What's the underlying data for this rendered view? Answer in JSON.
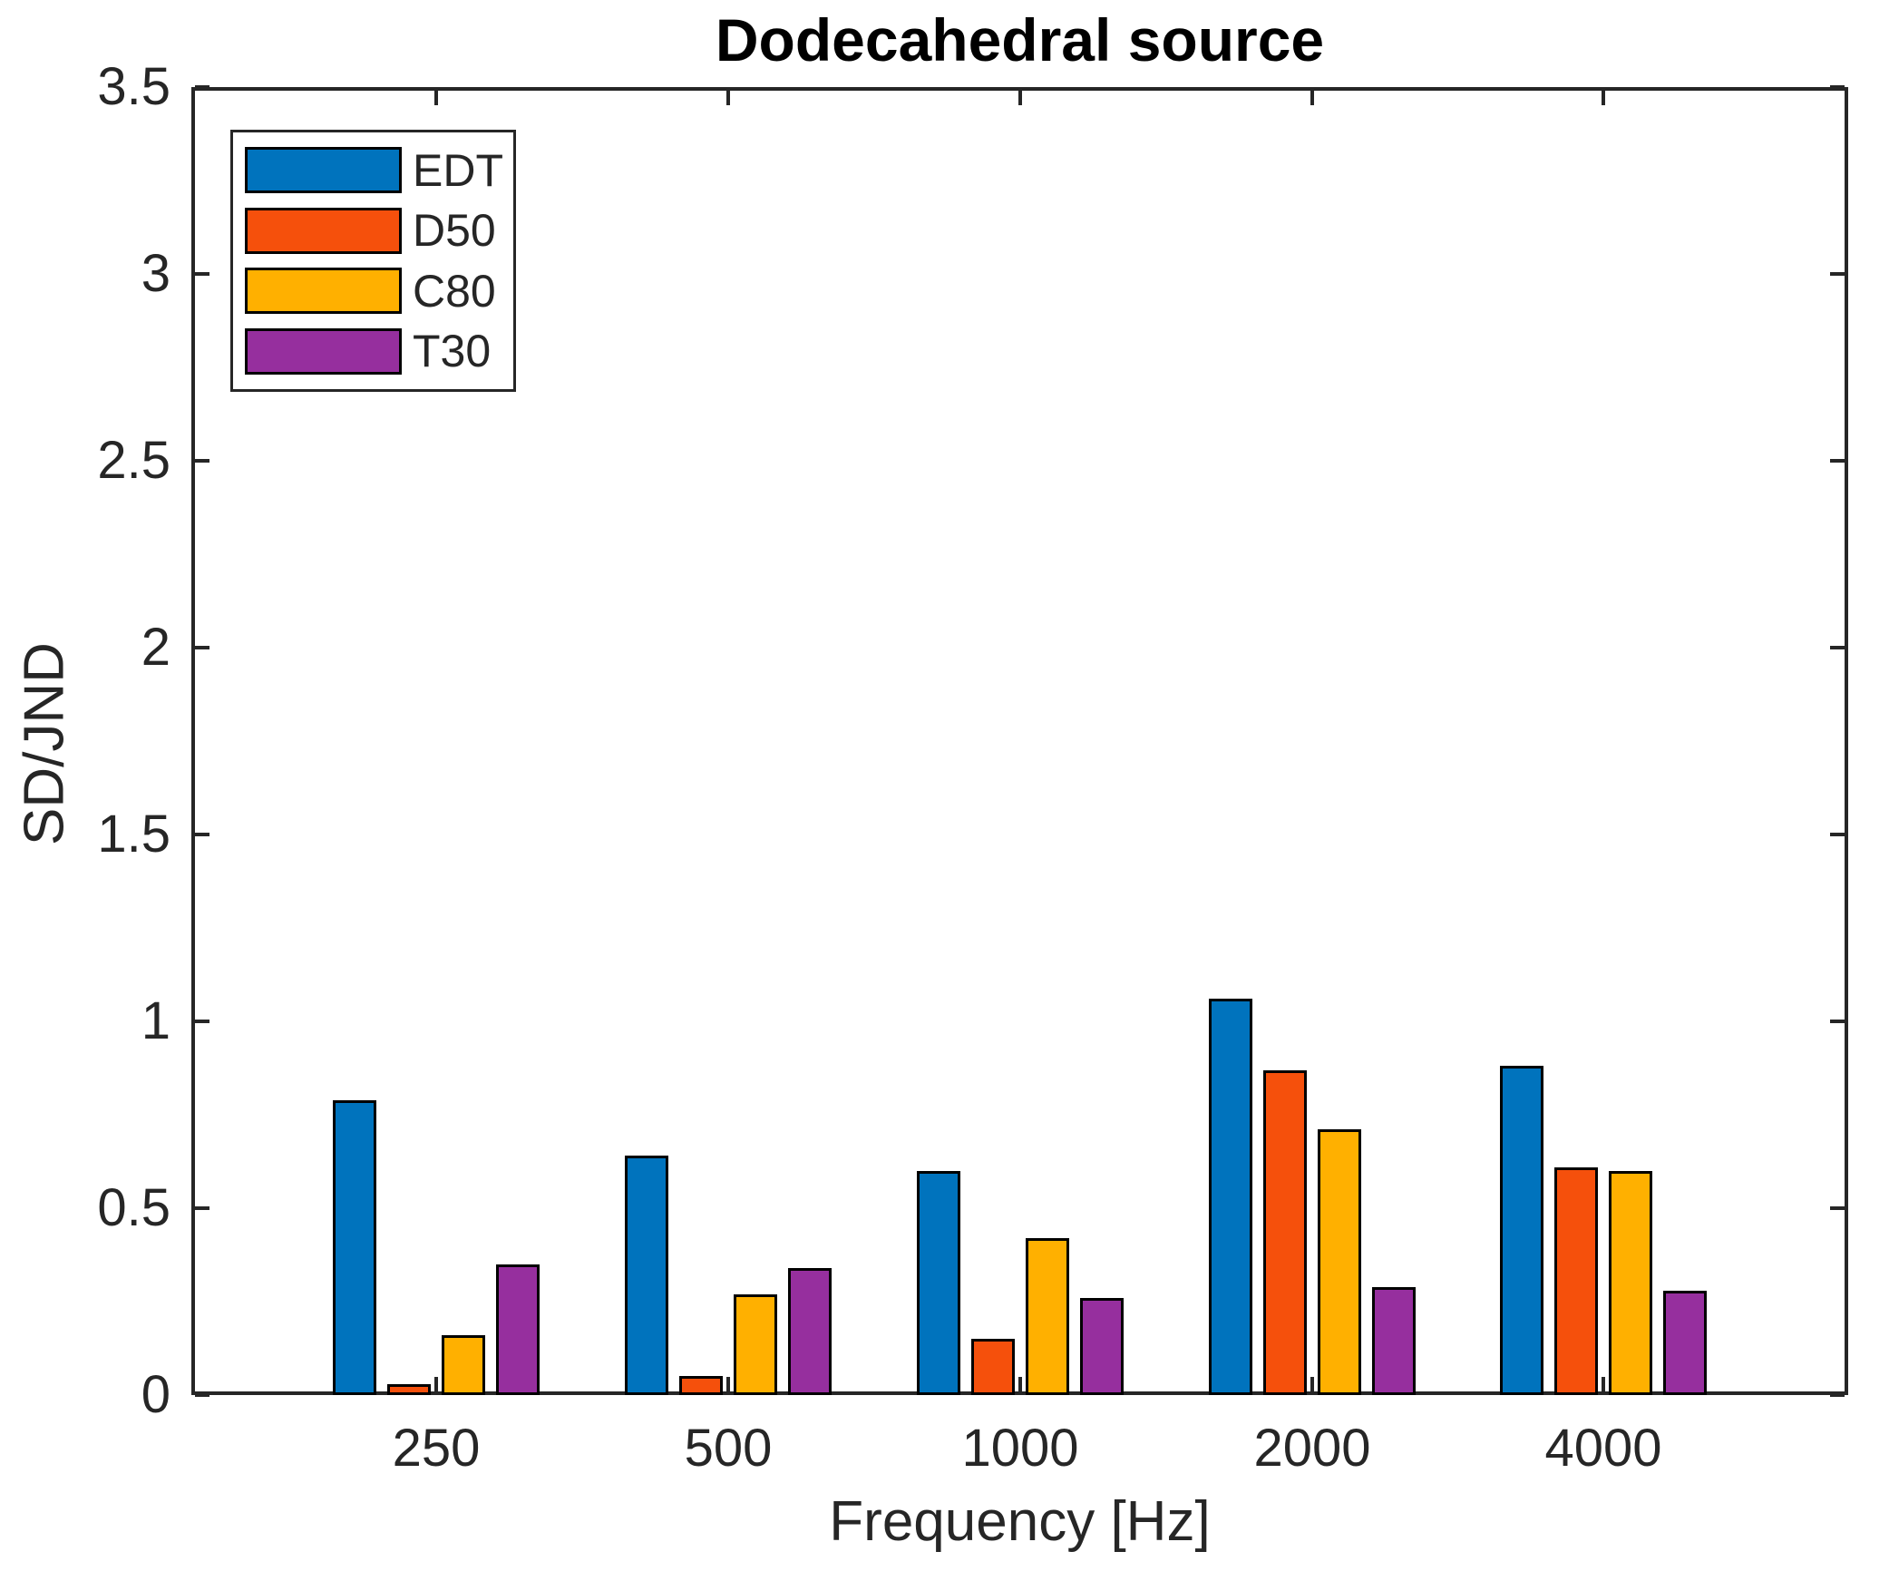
{
  "title": "Dodecahedral source",
  "axes": {
    "ylabel": "SD/JND",
    "xlabel": "Frequency [Hz]",
    "y_tick_labels": [
      "0",
      "0.5",
      "1",
      "1.5",
      "2",
      "2.5",
      "3",
      "3.5"
    ],
    "x_tick_labels": [
      "250",
      "500",
      "1000",
      "2000",
      "4000"
    ]
  },
  "legend": {
    "entries": [
      {
        "label": "EDT",
        "color": "#0073bd"
      },
      {
        "label": "D50",
        "color": "#f5500c"
      },
      {
        "label": "C80",
        "color": "#ffb000"
      },
      {
        "label": "T30",
        "color": "#962f9e"
      }
    ]
  },
  "chart_data": {
    "type": "bar",
    "title": "Dodecahedral source",
    "xlabel": "Frequency [Hz]",
    "ylabel": "SD/JND",
    "categories": [
      "250",
      "500",
      "1000",
      "2000",
      "4000"
    ],
    "series": [
      {
        "name": "EDT",
        "color": "#0073bd",
        "values": [
          0.79,
          0.64,
          0.6,
          1.06,
          0.88
        ]
      },
      {
        "name": "D50",
        "color": "#f5500c",
        "values": [
          0.03,
          0.05,
          0.15,
          0.87,
          0.61
        ]
      },
      {
        "name": "C80",
        "color": "#ffb000",
        "values": [
          0.16,
          0.27,
          0.42,
          0.71,
          0.6
        ]
      },
      {
        "name": "T30",
        "color": "#962f9e",
        "values": [
          0.35,
          0.34,
          0.26,
          0.29,
          0.28
        ]
      }
    ],
    "ylim": [
      0,
      3.5
    ],
    "ytick_step": 0.5,
    "bar_edge_color": "#000000",
    "grid": false,
    "legend_position": "top-left",
    "box": "on"
  }
}
